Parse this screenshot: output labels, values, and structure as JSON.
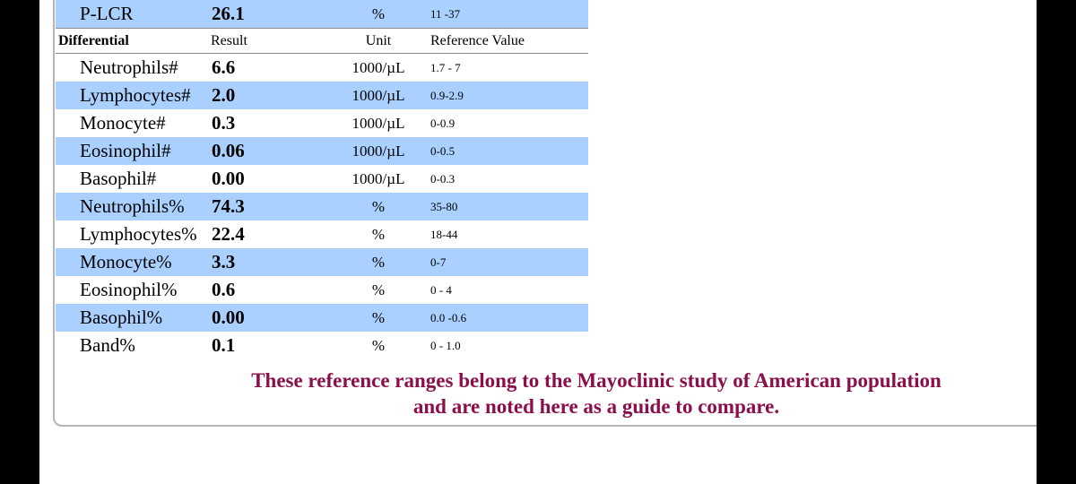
{
  "top_row": {
    "name": "P-LCR",
    "result": "26.1",
    "unit": "%",
    "reference": "11 -37"
  },
  "header": {
    "name": "Differential",
    "result": "Result",
    "unit": "Unit",
    "reference": "Reference Value"
  },
  "rows": [
    {
      "name": "Neutrophils#",
      "result": "6.6",
      "unit": "1000/µL",
      "reference": "1.7 - 7"
    },
    {
      "name": "Lymphocytes#",
      "result": "2.0",
      "unit": "1000/µL",
      "reference": "0.9-2.9"
    },
    {
      "name": "Monocyte#",
      "result": "0.3",
      "unit": "1000/µL",
      "reference": "0-0.9"
    },
    {
      "name": "Eosinophil#",
      "result": "0.06",
      "unit": "1000/µL",
      "reference": "0-0.5"
    },
    {
      "name": "Basophil#",
      "result": "0.00",
      "unit": "1000/µL",
      "reference": "0-0.3"
    },
    {
      "name": "Neutrophils%",
      "result": "74.3",
      "unit": "%",
      "reference": "35-80"
    },
    {
      "name": "Lymphocytes%",
      "result": "22.4",
      "unit": "%",
      "reference": "18-44"
    },
    {
      "name": "Monocyte%",
      "result": "3.3",
      "unit": "%",
      "reference": "0-7"
    },
    {
      "name": "Eosinophil%",
      "result": "0.6",
      "unit": "%",
      "reference": "0 - 4"
    },
    {
      "name": "Basophil%",
      "result": "0.00",
      "unit": "%",
      "reference": "0.0 -0.6"
    },
    {
      "name": "Band%",
      "result": "0.1",
      "unit": "%",
      "reference": "0 - 1.0"
    }
  ],
  "note": {
    "line1": "These reference ranges belong to the Mayoclinic study of American population",
    "line2": "and are noted here as a guide to compare."
  },
  "colors": {
    "row_shade": "#a9d0ff",
    "note_text": "#8a0f4a"
  }
}
